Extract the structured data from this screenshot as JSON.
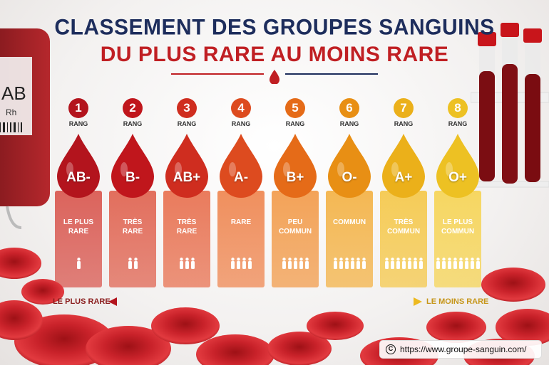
{
  "title": {
    "line1": "CLASSEMENT DES GROUPES SANGUINS",
    "line2": "DU PLUS RARE AU MOINS RARE"
  },
  "bag_label": {
    "group": "AB",
    "rh": "Rh"
  },
  "rank_label": "RANG",
  "groups": [
    {
      "rank": "1",
      "group": "AB-",
      "rarity": "LE PLUS\nRARE",
      "people": 1,
      "color": "#b3141d",
      "panel": "#d9574f"
    },
    {
      "rank": "2",
      "group": "B-",
      "rarity": "TRÈS\nRARE",
      "people": 2,
      "color": "#c0161c",
      "panel": "#e06350"
    },
    {
      "rank": "3",
      "group": "AB+",
      "rarity": "TRÈS\nRARE",
      "people": 3,
      "color": "#cf2d1f",
      "panel": "#e8704f"
    },
    {
      "rank": "4",
      "group": "A-",
      "rarity": "RARE",
      "people": 4,
      "color": "#dd4b1f",
      "panel": "#ef8650"
    },
    {
      "rank": "5",
      "group": "B+",
      "rarity": "PEU\nCOMMUN",
      "people": 5,
      "color": "#e56b18",
      "panel": "#f29b4a"
    },
    {
      "rank": "6",
      "group": "O-",
      "rarity": "COMMUN",
      "people": 6,
      "color": "#e88f14",
      "panel": "#f3b245"
    },
    {
      "rank": "7",
      "group": "A+",
      "rarity": "TRÈS\nCOMMUN",
      "people": 7,
      "color": "#ebb01a",
      "panel": "#f5c84a"
    },
    {
      "rank": "8",
      "group": "O+",
      "rarity": "LE PLUS\nCOMMUN",
      "people": 8,
      "color": "#edc123",
      "panel": "#f6d455"
    }
  ],
  "scale": {
    "left": "LE PLUS RARE",
    "right": "LE MOINS RARE",
    "left_color": "#8a1c1c",
    "right_color": "#c6961a"
  },
  "url": "https://www.groupe-sanguin.com/"
}
